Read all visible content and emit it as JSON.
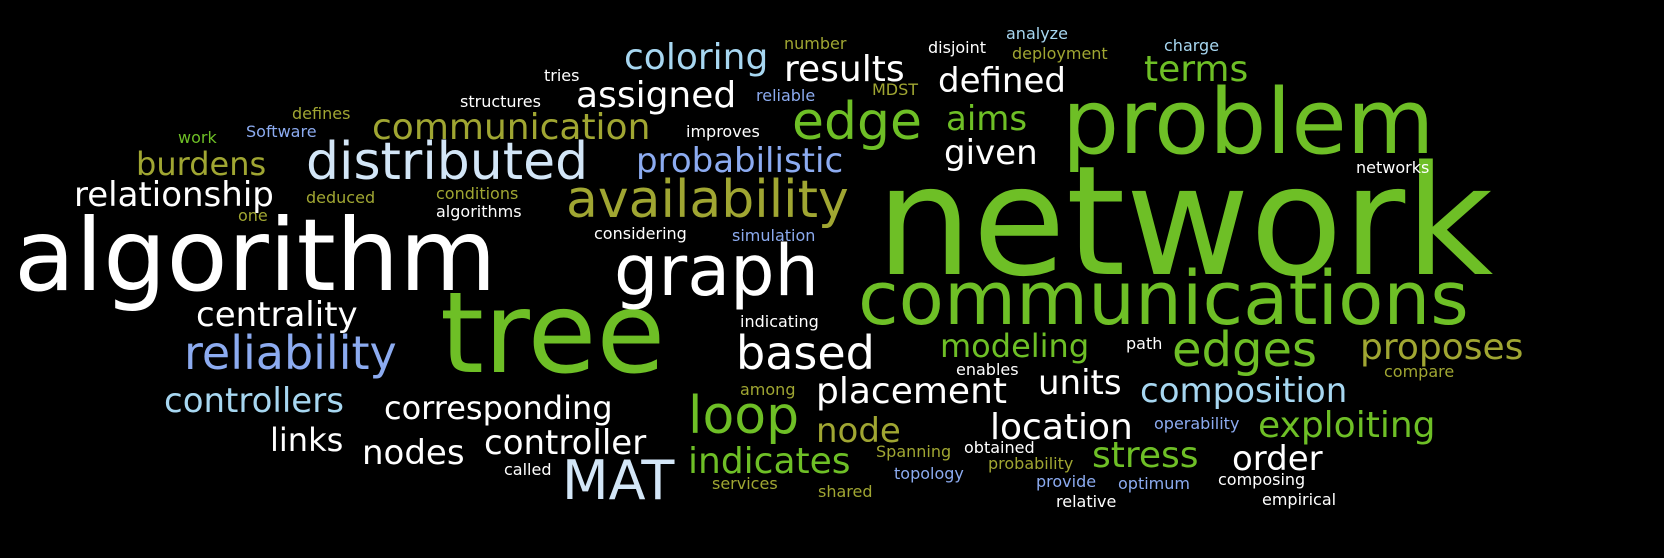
{
  "palette": {
    "background": "#000000",
    "white": "#FFFFFF",
    "pale_blue": "#D3E6F7",
    "sky_blue": "#A7D7F1",
    "periwinkle": "#8CABF0",
    "green": "#6EBF26",
    "olive": "#A0A632",
    "light_green": "#9BC53D"
  },
  "words": [
    {
      "id": "network",
      "text": "network",
      "color": "green"
    },
    {
      "id": "tree",
      "text": "tree",
      "color": "green"
    },
    {
      "id": "algorithm",
      "text": "algorithm",
      "color": "white"
    },
    {
      "id": "problem",
      "text": "problem",
      "color": "green"
    },
    {
      "id": "communications",
      "text": "communications",
      "color": "green"
    },
    {
      "id": "graph",
      "text": "graph",
      "color": "white"
    },
    {
      "id": "distributed",
      "text": "distributed",
      "color": "pale_blue"
    },
    {
      "id": "availability",
      "text": "availability",
      "color": "olive"
    },
    {
      "id": "reliability",
      "text": "reliability",
      "color": "periwinkle"
    },
    {
      "id": "loop",
      "text": "loop",
      "color": "green"
    },
    {
      "id": "mat",
      "text": "MAT",
      "color": "pale_blue"
    },
    {
      "id": "based",
      "text": "based",
      "color": "white"
    },
    {
      "id": "edge",
      "text": "edge",
      "color": "green"
    },
    {
      "id": "edges",
      "text": "edges",
      "color": "green"
    },
    {
      "id": "communication",
      "text": "communication",
      "color": "olive"
    },
    {
      "id": "results",
      "text": "results",
      "color": "white"
    },
    {
      "id": "coloring",
      "text": "coloring",
      "color": "sky_blue"
    },
    {
      "id": "relationship",
      "text": "relationship",
      "color": "white"
    },
    {
      "id": "assigned",
      "text": "assigned",
      "color": "white"
    },
    {
      "id": "defined",
      "text": "defined",
      "color": "white"
    },
    {
      "id": "probabilistic",
      "text": "probabilistic",
      "color": "periwinkle"
    },
    {
      "id": "burdens",
      "text": "burdens",
      "color": "olive"
    },
    {
      "id": "terms",
      "text": "terms",
      "color": "green"
    },
    {
      "id": "aims",
      "text": "aims",
      "color": "green"
    },
    {
      "id": "given",
      "text": "given",
      "color": "white"
    },
    {
      "id": "centrality",
      "text": "centrality",
      "color": "white"
    },
    {
      "id": "controllers",
      "text": "controllers",
      "color": "sky_blue"
    },
    {
      "id": "corresponding",
      "text": "corresponding",
      "color": "white"
    },
    {
      "id": "placement",
      "text": "placement",
      "color": "white"
    },
    {
      "id": "composition",
      "text": "composition",
      "color": "sky_blue"
    },
    {
      "id": "proposes",
      "text": "proposes",
      "color": "olive"
    },
    {
      "id": "modeling",
      "text": "modeling",
      "color": "green"
    },
    {
      "id": "exploiting",
      "text": "exploiting",
      "color": "green"
    },
    {
      "id": "location",
      "text": "location",
      "color": "white"
    },
    {
      "id": "controller",
      "text": "controller",
      "color": "white"
    },
    {
      "id": "nodes",
      "text": "nodes",
      "color": "white"
    },
    {
      "id": "node",
      "text": "node",
      "color": "olive"
    },
    {
      "id": "indicates",
      "text": "indicates",
      "color": "green"
    },
    {
      "id": "stress",
      "text": "stress",
      "color": "green"
    },
    {
      "id": "order",
      "text": "order",
      "color": "white"
    },
    {
      "id": "units",
      "text": "units",
      "color": "white"
    },
    {
      "id": "links",
      "text": "links",
      "color": "white"
    },
    {
      "id": "number",
      "text": "number",
      "color": "olive"
    },
    {
      "id": "disjoint",
      "text": "disjoint",
      "color": "white"
    },
    {
      "id": "analyze",
      "text": "analyze",
      "color": "sky_blue"
    },
    {
      "id": "deployment",
      "text": "deployment",
      "color": "olive"
    },
    {
      "id": "charge",
      "text": "charge",
      "color": "sky_blue"
    },
    {
      "id": "tries",
      "text": "tries",
      "color": "white"
    },
    {
      "id": "structures",
      "text": "structures",
      "color": "white"
    },
    {
      "id": "reliable",
      "text": "reliable",
      "color": "periwinkle"
    },
    {
      "id": "mdst",
      "text": "MDST",
      "color": "olive"
    },
    {
      "id": "defines",
      "text": "defines",
      "color": "olive"
    },
    {
      "id": "work",
      "text": "work",
      "color": "green"
    },
    {
      "id": "software",
      "text": "Software",
      "color": "periwinkle"
    },
    {
      "id": "improves",
      "text": "improves",
      "color": "white"
    },
    {
      "id": "networks",
      "text": "networks",
      "color": "white"
    },
    {
      "id": "conditions",
      "text": "conditions",
      "color": "olive"
    },
    {
      "id": "deduced",
      "text": "deduced",
      "color": "olive"
    },
    {
      "id": "one",
      "text": "one",
      "color": "olive"
    },
    {
      "id": "algorithms",
      "text": "algorithms",
      "color": "white"
    },
    {
      "id": "considering",
      "text": "considering",
      "color": "white"
    },
    {
      "id": "simulation",
      "text": "simulation",
      "color": "periwinkle"
    },
    {
      "id": "indicating",
      "text": "indicating",
      "color": "white"
    },
    {
      "id": "path",
      "text": "path",
      "color": "white"
    },
    {
      "id": "enables",
      "text": "enables",
      "color": "white"
    },
    {
      "id": "compare",
      "text": "compare",
      "color": "olive"
    },
    {
      "id": "among",
      "text": "among",
      "color": "olive"
    },
    {
      "id": "operability",
      "text": "operability",
      "color": "periwinkle"
    },
    {
      "id": "spanning",
      "text": "Spanning",
      "color": "olive"
    },
    {
      "id": "obtained",
      "text": "obtained",
      "color": "white"
    },
    {
      "id": "probability",
      "text": "probability",
      "color": "olive"
    },
    {
      "id": "called",
      "text": "called",
      "color": "white"
    },
    {
      "id": "services",
      "text": "services",
      "color": "olive"
    },
    {
      "id": "topology",
      "text": "topology",
      "color": "periwinkle"
    },
    {
      "id": "shared",
      "text": "shared",
      "color": "olive"
    },
    {
      "id": "provide",
      "text": "provide",
      "color": "periwinkle"
    },
    {
      "id": "optimum",
      "text": "optimum",
      "color": "periwinkle"
    },
    {
      "id": "composing",
      "text": "composing",
      "color": "white"
    },
    {
      "id": "empirical",
      "text": "empirical",
      "color": "white"
    },
    {
      "id": "relative",
      "text": "relative",
      "color": "white"
    }
  ]
}
